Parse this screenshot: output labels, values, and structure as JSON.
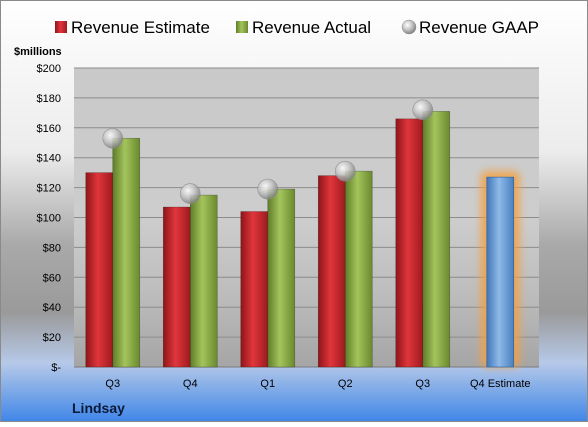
{
  "chart_data": {
    "type": "bar",
    "unit_label": "$millions",
    "company": "Lindsay",
    "categories": [
      "Q3",
      "Q4",
      "Q1",
      "Q2",
      "Q3",
      "Q4 Estimate"
    ],
    "ylim": [
      0,
      200
    ],
    "y_ticks": [
      {
        "value": 0,
        "label": "$-"
      },
      {
        "value": 20,
        "label": "$20"
      },
      {
        "value": 40,
        "label": "$40"
      },
      {
        "value": 60,
        "label": "$60"
      },
      {
        "value": 80,
        "label": "$80"
      },
      {
        "value": 100,
        "label": "$100"
      },
      {
        "value": 120,
        "label": "$120"
      },
      {
        "value": 140,
        "label": "$140"
      },
      {
        "value": 160,
        "label": "$160"
      },
      {
        "value": 180,
        "label": "$180"
      },
      {
        "value": 200,
        "label": "$200"
      }
    ],
    "grid": true,
    "legend_position": "top",
    "series": [
      {
        "name": "Revenue Estimate",
        "kind": "bar",
        "color": "#c0272d",
        "values": [
          130,
          107,
          104,
          128,
          166,
          null
        ]
      },
      {
        "name": "Revenue Actual",
        "kind": "bar",
        "color": "#86a844",
        "values": [
          153,
          115,
          119,
          131,
          171,
          null
        ]
      },
      {
        "name": "Revenue GAAP",
        "kind": "marker",
        "color": "#b5b5b5",
        "values": [
          153,
          116,
          119,
          131,
          172,
          null
        ]
      }
    ],
    "estimate_bar": {
      "category_index": 5,
      "value": 127,
      "color": "#6a9fd8",
      "glow_color": "#f4a041"
    }
  }
}
